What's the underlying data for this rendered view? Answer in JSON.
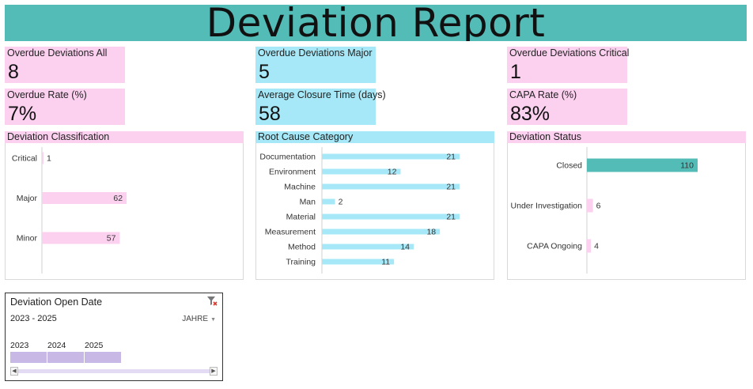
{
  "title": "Deviation Report",
  "kpis": {
    "overdue_all": {
      "label": "Overdue Deviations All",
      "value": "8"
    },
    "overdue_major": {
      "label": "Overdue Deviations Major",
      "value": "5"
    },
    "overdue_critical": {
      "label": "Overdue Deviations Critical",
      "value": "1"
    },
    "overdue_rate": {
      "label": "Overdue Rate (%)",
      "value": "7%"
    },
    "avg_closure": {
      "label": "Average Closure Time (days)",
      "value": "58"
    },
    "capa_rate": {
      "label": "CAPA Rate (%)",
      "value": "83%"
    }
  },
  "colors": {
    "banner": "#53bcb7",
    "pink": "#fcd0ef",
    "cyan": "#a6e8f7",
    "teal_bar": "#53bcb7",
    "slicer": "#c8b8e6"
  },
  "chart_data": [
    {
      "type": "bar",
      "orientation": "horizontal",
      "title": "Deviation Classification",
      "categories": [
        "Critical",
        "Major",
        "Minor"
      ],
      "values": [
        1,
        62,
        57
      ],
      "xlim": [
        0,
        110
      ]
    },
    {
      "type": "bar",
      "orientation": "horizontal",
      "title": "Root Cause Category",
      "categories": [
        "Documentation",
        "Environment",
        "Machine",
        "Man",
        "Material",
        "Measurement",
        "Method",
        "Training"
      ],
      "values": [
        21,
        12,
        21,
        2,
        21,
        18,
        14,
        11
      ],
      "xlim": [
        0,
        21
      ]
    },
    {
      "type": "bar",
      "orientation": "horizontal",
      "title": "Deviation Status",
      "categories": [
        "Closed",
        "Under Investigation",
        "CAPA Ongoing"
      ],
      "values": [
        110,
        6,
        4
      ],
      "xlim": [
        0,
        110
      ],
      "bar_colors": [
        "#53bcb7",
        "#fcd0ef",
        "#fcd0ef"
      ]
    }
  ],
  "slicer": {
    "title": "Deviation Open Date",
    "range": "2023 - 2025",
    "level": "JAHRE",
    "years": [
      "2023",
      "2024",
      "2025"
    ],
    "filter_icon": "clear-filter-icon"
  }
}
